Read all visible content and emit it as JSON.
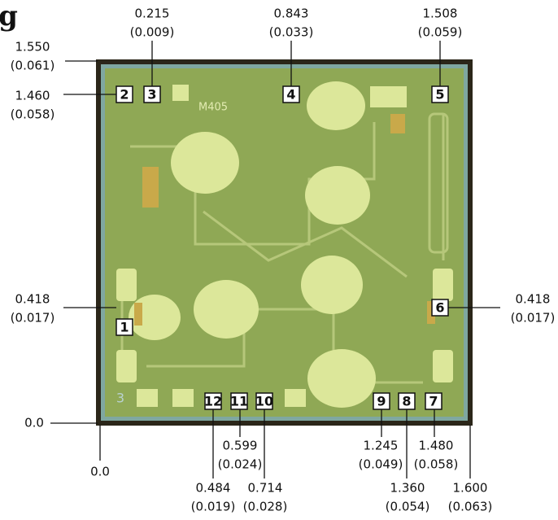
{
  "heading": "g",
  "dimensions": [
    {
      "value": "0.215",
      "inches": "(0.009)"
    },
    {
      "value": "0.843",
      "inches": "(0.033)"
    },
    {
      "value": "1.508",
      "inches": "(0.059)"
    },
    {
      "value": "1.550",
      "inches": "(0.061)"
    },
    {
      "value": "1.460",
      "inches": "(0.058)"
    },
    {
      "value": "0.418",
      "inches": "(0.017)"
    },
    {
      "value": "0.418",
      "inches": "(0.017)"
    },
    {
      "value": "0.0"
    },
    {
      "value": "0.0"
    },
    {
      "value": "0.599",
      "inches": "(0.024)"
    },
    {
      "value": "0.484",
      "inches": "(0.019)"
    },
    {
      "value": "0.714",
      "inches": "(0.028)"
    },
    {
      "value": "1.245",
      "inches": "(0.049)"
    },
    {
      "value": "1.480",
      "inches": "(0.058)"
    },
    {
      "value": "1.360",
      "inches": "(0.054)"
    },
    {
      "value": "1.600",
      "inches": "(0.063)"
    }
  ],
  "pads": [
    "1",
    "2",
    "3",
    "4",
    "5",
    "6",
    "7",
    "8",
    "9",
    "10",
    "11",
    "12"
  ],
  "die_marks": [
    "M405",
    "3"
  ]
}
